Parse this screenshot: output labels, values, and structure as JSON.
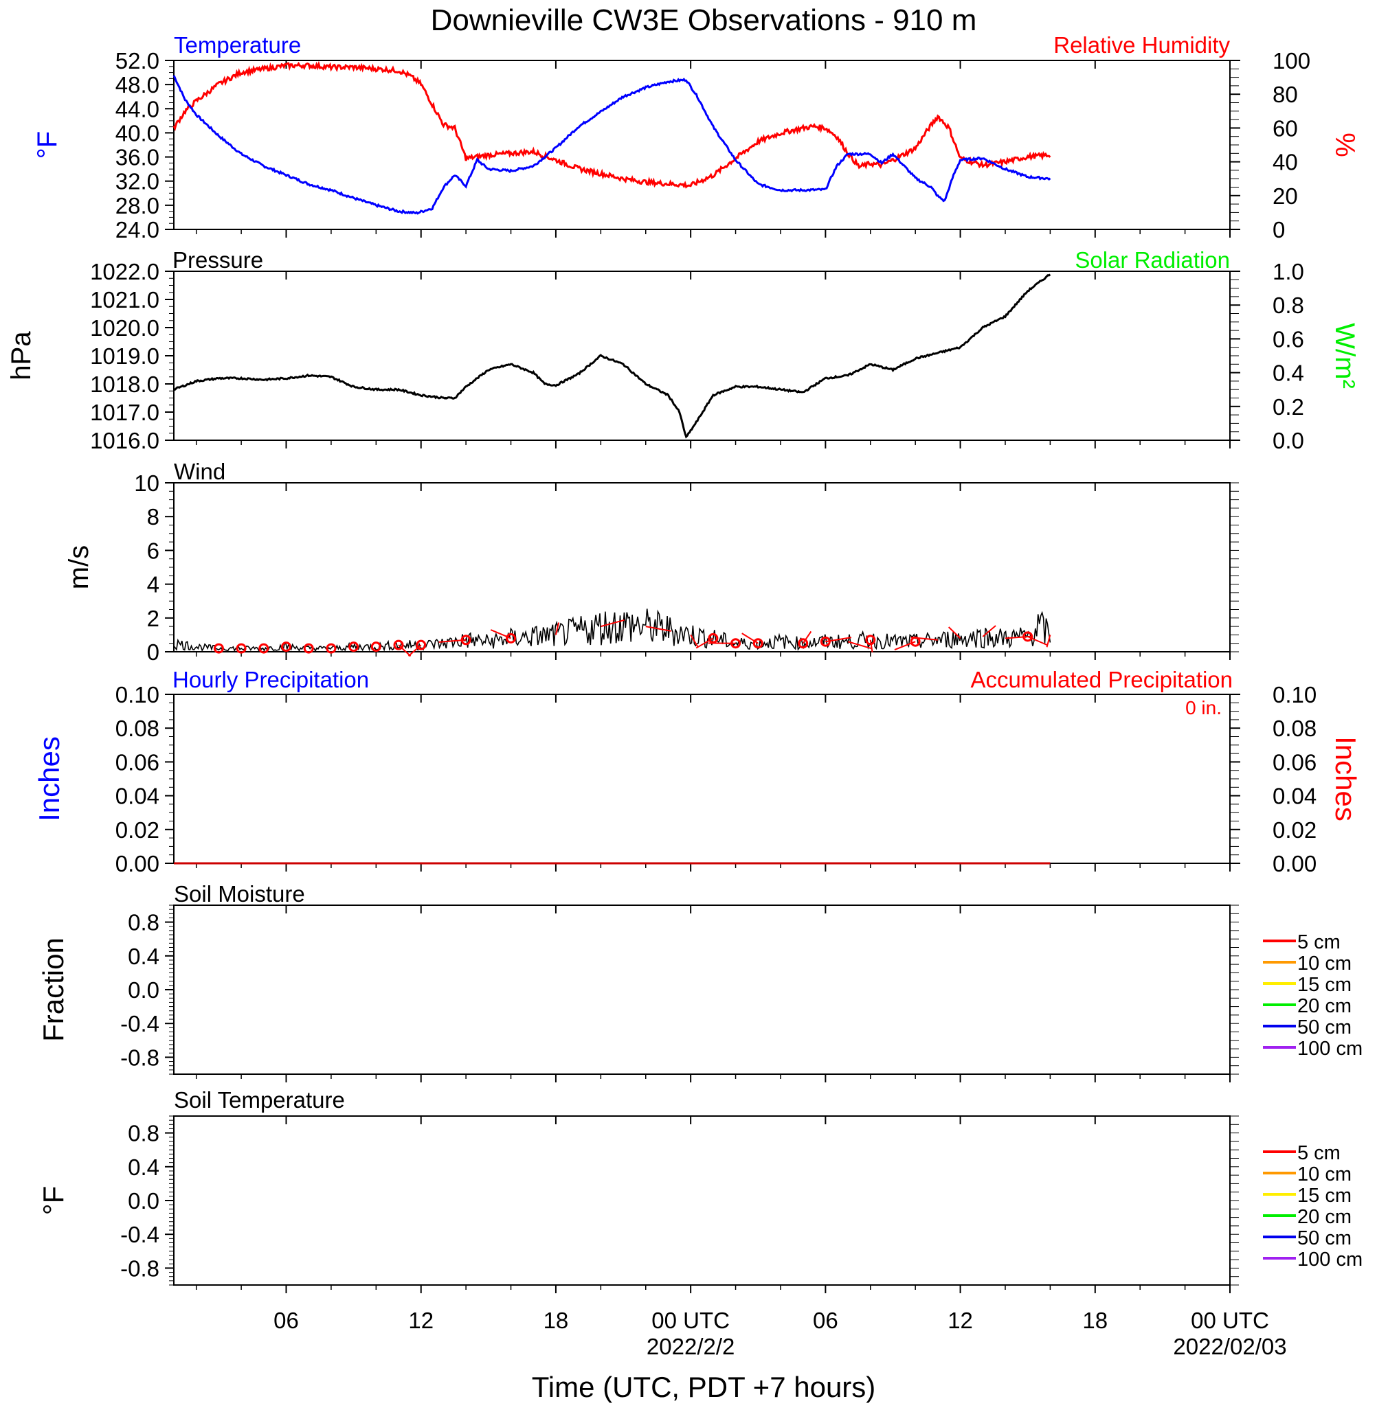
{
  "title": "Downieville CW3E Observations - 910 m",
  "xaxis": {
    "title": "Time (UTC, PDT +7 hours)",
    "tick_labels": [
      "06",
      "12",
      "18",
      "00 UTC",
      "06",
      "12",
      "18",
      "00 UTC"
    ],
    "tick_hours": [
      6,
      12,
      18,
      24,
      30,
      36,
      42,
      48
    ],
    "date_labels": [
      "2022/2/2",
      "2022/02/03"
    ],
    "date_hours": [
      24,
      48
    ],
    "range_hours": [
      1,
      48
    ]
  },
  "colors": {
    "temperature": "#0000ff",
    "humidity": "#ff0000",
    "pressure": "#000000",
    "solar": "#00ee00",
    "wind": "#000000",
    "wind_barb": "#ff0000",
    "precip_hourly": "#0000ff",
    "precip_accum": "#ff0000",
    "soil_5cm": "#ff0000",
    "soil_10cm": "#ff9900",
    "soil_15cm": "#ffee00",
    "soil_20cm": "#00ee00",
    "soil_50cm": "#0000ee",
    "soil_100cm": "#a020f0"
  },
  "panels": {
    "temp_rh": {
      "left_title": "Temperature",
      "right_title": "Relative Humidity",
      "left_unit": "°F",
      "right_unit": "%",
      "left_ticks": [
        "52.0",
        "48.0",
        "44.0",
        "40.0",
        "36.0",
        "32.0",
        "28.0",
        "24.0"
      ],
      "right_ticks": [
        "100",
        "80",
        "60",
        "40",
        "20",
        "0"
      ]
    },
    "pressure": {
      "left_title": "Pressure",
      "right_title": "Solar Radiation",
      "left_unit": "hPa",
      "right_unit": "W/m²",
      "left_ticks": [
        "1022.0",
        "1021.0",
        "1020.0",
        "1019.0",
        "1018.0",
        "1017.0",
        "1016.0"
      ],
      "right_ticks": [
        "1.0",
        "0.8",
        "0.6",
        "0.4",
        "0.2",
        "0.0"
      ]
    },
    "wind": {
      "left_title": "Wind",
      "left_unit": "m/s",
      "left_ticks": [
        "10",
        "8",
        "6",
        "4",
        "2",
        "0"
      ]
    },
    "precip": {
      "left_title": "Hourly Precipitation",
      "right_title": "Accumulated Precipitation",
      "total": "0 in.",
      "left_unit": "Inches",
      "right_unit": "Inches",
      "left_ticks": [
        "0.10",
        "0.08",
        "0.06",
        "0.04",
        "0.02",
        "0.00"
      ],
      "right_ticks": [
        "0.10",
        "0.08",
        "0.06",
        "0.04",
        "0.02",
        "0.00"
      ]
    },
    "soil_moisture": {
      "left_title": "Soil Moisture",
      "left_unit": "Fraction",
      "left_ticks": [
        "0.8",
        "0.4",
        "0.0",
        "-0.4",
        "-0.8"
      ],
      "legend": [
        "5 cm",
        "10 cm",
        "15 cm",
        "20 cm",
        "50 cm",
        "100 cm"
      ]
    },
    "soil_temp": {
      "left_title": "Soil Temperature",
      "left_unit": "°F",
      "left_ticks": [
        "0.8",
        "0.4",
        "0.0",
        "-0.4",
        "-0.8"
      ],
      "legend": [
        "5 cm",
        "10 cm",
        "15 cm",
        "20 cm",
        "50 cm",
        "100 cm"
      ]
    }
  },
  "chart_data": [
    {
      "type": "line",
      "title": "Temperature / Relative Humidity",
      "x_unit": "hours since 2022-02-01 00 UTC",
      "xlim": [
        1,
        48
      ],
      "series": [
        {
          "name": "Temperature",
          "unit": "°F",
          "ylim": [
            24,
            52
          ],
          "x": [
            1,
            1.5,
            2,
            3,
            4,
            5,
            6,
            7,
            8,
            9,
            10,
            11,
            11.8,
            12.5,
            13,
            13.5,
            14,
            14.5,
            15,
            16,
            17,
            18,
            19,
            20,
            21,
            22,
            23,
            23.8,
            24.3,
            25,
            26,
            27,
            28,
            29,
            30,
            30.5,
            31,
            32,
            32.5,
            33,
            34,
            34.7,
            35,
            35.3,
            35.7,
            36,
            37,
            38,
            39,
            40
          ],
          "values": [
            49.5,
            45.5,
            43,
            39.5,
            36.5,
            34.5,
            33,
            31.5,
            30.5,
            29.2,
            28,
            27,
            26.7,
            27.5,
            31,
            33,
            31.2,
            35.5,
            34,
            33.7,
            34.5,
            37.5,
            41,
            43.5,
            46,
            47.5,
            48.5,
            48.8,
            46,
            41,
            35.5,
            31.5,
            30.5,
            30.5,
            30.6,
            34.5,
            36.5,
            36.5,
            35,
            36.5,
            32.5,
            31,
            29.5,
            28.7,
            33,
            35.5,
            35.8,
            34,
            32.7,
            32.4
          ]
        },
        {
          "name": "Relative Humidity",
          "unit": "%",
          "ylim": [
            0,
            100
          ],
          "x": [
            1,
            1.5,
            2,
            3,
            4,
            5,
            6,
            7,
            8,
            9,
            10,
            11,
            11.5,
            12,
            12.5,
            13,
            13.5,
            14,
            14.5,
            15,
            16,
            17,
            18,
            19,
            20,
            21,
            22,
            23,
            24,
            25,
            26,
            27,
            28,
            29,
            29.5,
            30,
            30.5,
            31,
            31.5,
            32,
            32.5,
            33,
            34,
            34.5,
            35,
            35.5,
            36,
            36.5,
            37,
            38,
            39,
            40
          ],
          "values": [
            60,
            70,
            76,
            86,
            93,
            95,
            97,
            97,
            96,
            96,
            95,
            94,
            91,
            86,
            74,
            62,
            60,
            42,
            43,
            44,
            45,
            46,
            41,
            36,
            33,
            30,
            28,
            27,
            26,
            32,
            42,
            52,
            57,
            60,
            61,
            60,
            55,
            45,
            37,
            39,
            38,
            41,
            48,
            58,
            67,
            60,
            42,
            40,
            38,
            40,
            43,
            44
          ]
        }
      ]
    },
    {
      "type": "line",
      "title": "Pressure",
      "x_unit": "hours since 2022-02-01 00 UTC",
      "xlim": [
        1,
        48
      ],
      "ylim": [
        1016,
        1022
      ],
      "ylabel": "hPa",
      "series": [
        {
          "name": "Pressure",
          "x": [
            1,
            2,
            3,
            4,
            5,
            6,
            7,
            8,
            9,
            10,
            11,
            12,
            13,
            13.5,
            14,
            15,
            16,
            17,
            17.5,
            18,
            19,
            20,
            21,
            22,
            22.5,
            23,
            23.5,
            23.8,
            24.3,
            25,
            26,
            27,
            28,
            29,
            30,
            31,
            32,
            33,
            34,
            35,
            36,
            37,
            38,
            39,
            40
          ],
          "values": [
            1017.8,
            1018.1,
            1018.2,
            1018.2,
            1018.15,
            1018.2,
            1018.3,
            1018.25,
            1017.9,
            1017.8,
            1017.8,
            1017.6,
            1017.5,
            1017.5,
            1017.9,
            1018.5,
            1018.7,
            1018.4,
            1018.0,
            1017.95,
            1018.35,
            1019.0,
            1018.7,
            1018.0,
            1017.8,
            1017.6,
            1017.0,
            1016.1,
            1016.7,
            1017.6,
            1017.9,
            1017.9,
            1017.8,
            1017.7,
            1018.2,
            1018.3,
            1018.7,
            1018.5,
            1018.9,
            1019.1,
            1019.3,
            1020.0,
            1020.4,
            1021.3,
            1021.9
          ]
        }
      ]
    },
    {
      "type": "line",
      "title": "Wind",
      "x_unit": "hours since 2022-02-01 00 UTC",
      "xlim": [
        1,
        48
      ],
      "ylim": [
        0,
        10
      ],
      "ylabel": "m/s",
      "series": [
        {
          "name": "Wind speed",
          "x": [
            1,
            2,
            3,
            4,
            5,
            6,
            7,
            8,
            9,
            10,
            11,
            12,
            13,
            14,
            15,
            16,
            17,
            18,
            19,
            20,
            21,
            22,
            23,
            24,
            25,
            26,
            27,
            28,
            29,
            30,
            31,
            32,
            33,
            34,
            35,
            36,
            37,
            38,
            39,
            39.5,
            40
          ],
          "values": [
            0.5,
            0.3,
            0.2,
            0.2,
            0.2,
            0.3,
            0.2,
            0.2,
            0.3,
            0.3,
            0.4,
            0.4,
            0.5,
            0.7,
            0.6,
            0.8,
            0.9,
            1.0,
            1.2,
            1.5,
            1.6,
            1.5,
            1.3,
            1.0,
            0.8,
            0.5,
            0.5,
            0.6,
            0.5,
            0.6,
            0.6,
            0.7,
            0.6,
            0.6,
            0.7,
            0.8,
            0.9,
            0.8,
            0.9,
            1.5,
            1.0
          ]
        }
      ],
      "barbs_hours": [
        3,
        4,
        5,
        6,
        7,
        8,
        9,
        10,
        11,
        12,
        14,
        16,
        18,
        20,
        22,
        24,
        25,
        26,
        27,
        29,
        30,
        31,
        32,
        34,
        35,
        36,
        37,
        38,
        39,
        40
      ],
      "calm_hours": [
        3,
        4,
        5,
        6,
        7,
        8,
        9,
        10,
        11,
        12,
        14,
        16,
        25,
        26,
        27,
        29,
        30,
        32,
        34,
        39
      ]
    },
    {
      "type": "line",
      "title": "Precipitation",
      "x_unit": "hours since 2022-02-01 00 UTC",
      "xlim": [
        1,
        48
      ],
      "ylim": [
        0,
        0.1
      ],
      "series": [
        {
          "name": "Hourly Precipitation",
          "x": [
            1,
            40
          ],
          "values": [
            0,
            0
          ]
        },
        {
          "name": "Accumulated Precipitation",
          "x": [
            1,
            40
          ],
          "values": [
            0,
            0
          ]
        }
      ]
    },
    {
      "type": "line",
      "title": "Soil Moisture",
      "ylim": [
        -1,
        1
      ],
      "series": []
    },
    {
      "type": "line",
      "title": "Soil Temperature",
      "ylim": [
        -1,
        1
      ],
      "series": []
    }
  ]
}
